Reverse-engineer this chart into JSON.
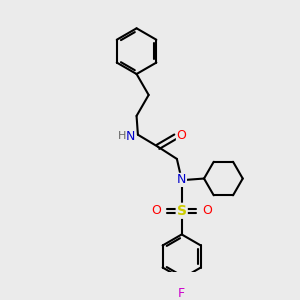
{
  "bg_color": "#ebebeb",
  "bond_color": "#000000",
  "atom_colors": {
    "N": "#0000cc",
    "O": "#ff0000",
    "S": "#cccc00",
    "F": "#cc00cc",
    "H": "#666666"
  },
  "line_width": 1.5,
  "figsize": [
    3.0,
    3.0
  ],
  "dpi": 100,
  "xlim": [
    0,
    10
  ],
  "ylim": [
    0,
    10
  ]
}
